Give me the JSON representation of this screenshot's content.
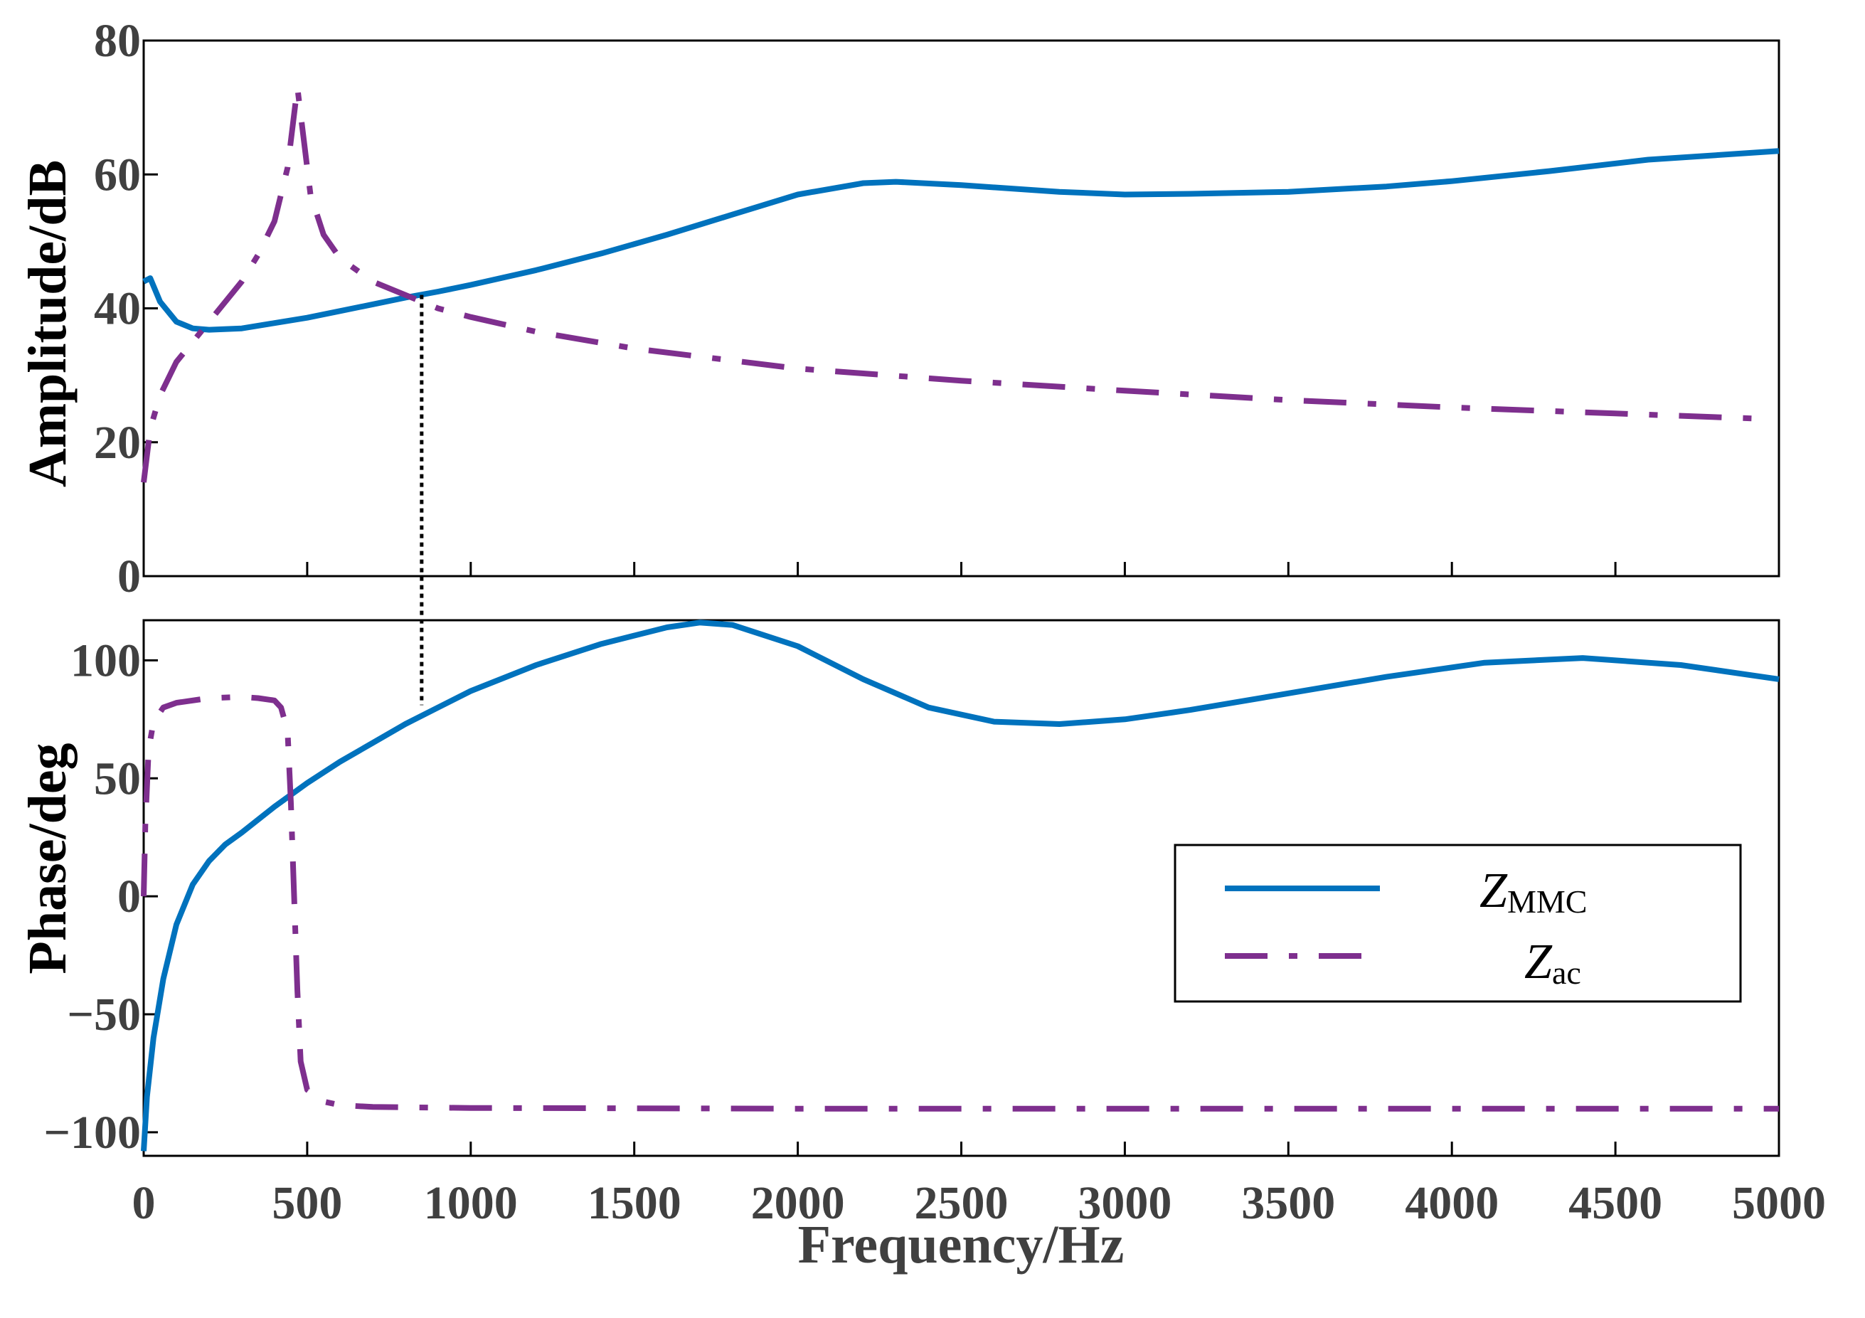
{
  "chart_data": [
    {
      "type": "line",
      "panel": "amplitude",
      "ylabel": "Amplitude/dB",
      "xlabel": "",
      "xlim": [
        0,
        5000
      ],
      "ylim": [
        0,
        80
      ],
      "yticks": [
        "0",
        "20",
        "40",
        "60",
        "80"
      ],
      "xticks": [],
      "series": [
        {
          "name": "Z_MMC",
          "x": [
            0,
            20,
            50,
            100,
            150,
            200,
            300,
            400,
            500,
            600,
            700,
            800,
            900,
            1000,
            1200,
            1400,
            1600,
            1800,
            2000,
            2200,
            2300,
            2500,
            2800,
            3000,
            3200,
            3500,
            3800,
            4000,
            4300,
            4600,
            5000
          ],
          "values": [
            44,
            44.5,
            41,
            38,
            37,
            36.8,
            37,
            37.8,
            38.6,
            39.6,
            40.6,
            41.6,
            42.5,
            43.5,
            45.7,
            48.2,
            51,
            54,
            57,
            58.7,
            58.9,
            58.4,
            57.4,
            57,
            57.1,
            57.4,
            58.2,
            59,
            60.5,
            62.2,
            63.5
          ]
        },
        {
          "name": "Z_ac",
          "x": [
            0,
            20,
            50,
            100,
            150,
            200,
            250,
            300,
            350,
            400,
            440,
            470,
            490,
            510,
            550,
            600,
            700,
            800,
            900,
            1000,
            1200,
            1500,
            2000,
            2500,
            3000,
            3500,
            4000,
            4500,
            4950
          ],
          "values": [
            14,
            22,
            27,
            32,
            35,
            38,
            41,
            44,
            48,
            53,
            61,
            73,
            65,
            57,
            51,
            47.5,
            44,
            42,
            40,
            38.7,
            36.5,
            34,
            31,
            29.2,
            27.7,
            26.3,
            25.2,
            24.3,
            23.5
          ]
        }
      ],
      "annotations": [
        "dotted vertical marker at intersection, about 850 Hz"
      ]
    },
    {
      "type": "line",
      "panel": "phase",
      "ylabel": "Phase/deg",
      "xlabel": "Frequency/Hz",
      "xlim": [
        0,
        5000
      ],
      "ylim": [
        -110,
        117
      ],
      "yticks": [
        "-100",
        "-50",
        "0",
        "50",
        "100"
      ],
      "xticks": [
        "0",
        "500",
        "1000",
        "1500",
        "2000",
        "2500",
        "3000",
        "3500",
        "4000",
        "4500",
        "5000"
      ],
      "series": [
        {
          "name": "Z_MMC",
          "x": [
            0,
            10,
            30,
            60,
            100,
            150,
            200,
            250,
            300,
            400,
            500,
            600,
            700,
            800,
            900,
            1000,
            1200,
            1400,
            1600,
            1700,
            1800,
            2000,
            2200,
            2400,
            2600,
            2800,
            3000,
            3200,
            3500,
            3800,
            4100,
            4400,
            4700,
            5000
          ],
          "values": [
            -108,
            -85,
            -60,
            -35,
            -12,
            5,
            15,
            22,
            27,
            38,
            48,
            57,
            65,
            73,
            80,
            87,
            98,
            107,
            114,
            116,
            115,
            106,
            92,
            80,
            74,
            73,
            75,
            79,
            86,
            93,
            99,
            101,
            98,
            92
          ]
        },
        {
          "name": "Z_ac",
          "x": [
            0,
            5,
            15,
            30,
            60,
            100,
            200,
            300,
            350,
            400,
            420,
            440,
            450,
            460,
            470,
            480,
            500,
            550,
            600,
            700,
            1000,
            2000,
            3000,
            4000,
            5000
          ],
          "values": [
            0,
            30,
            62,
            74,
            80,
            82,
            84,
            84.5,
            84,
            83,
            80,
            70,
            40,
            0,
            -40,
            -70,
            -82,
            -87,
            -88.5,
            -89.3,
            -89.7,
            -90,
            -90,
            -90,
            -90
          ]
        }
      ],
      "annotations": [
        "dotted vertical marker at about 850 Hz"
      ]
    }
  ],
  "legend": {
    "items": [
      {
        "symbol": "Z",
        "subscript": "MMC"
      },
      {
        "symbol": "Z",
        "subscript": "ac"
      }
    ]
  },
  "colors": {
    "mmc": "#0072BD",
    "ac": "#7E2F8E",
    "marker": "#000000"
  },
  "marker_frequency": 850
}
